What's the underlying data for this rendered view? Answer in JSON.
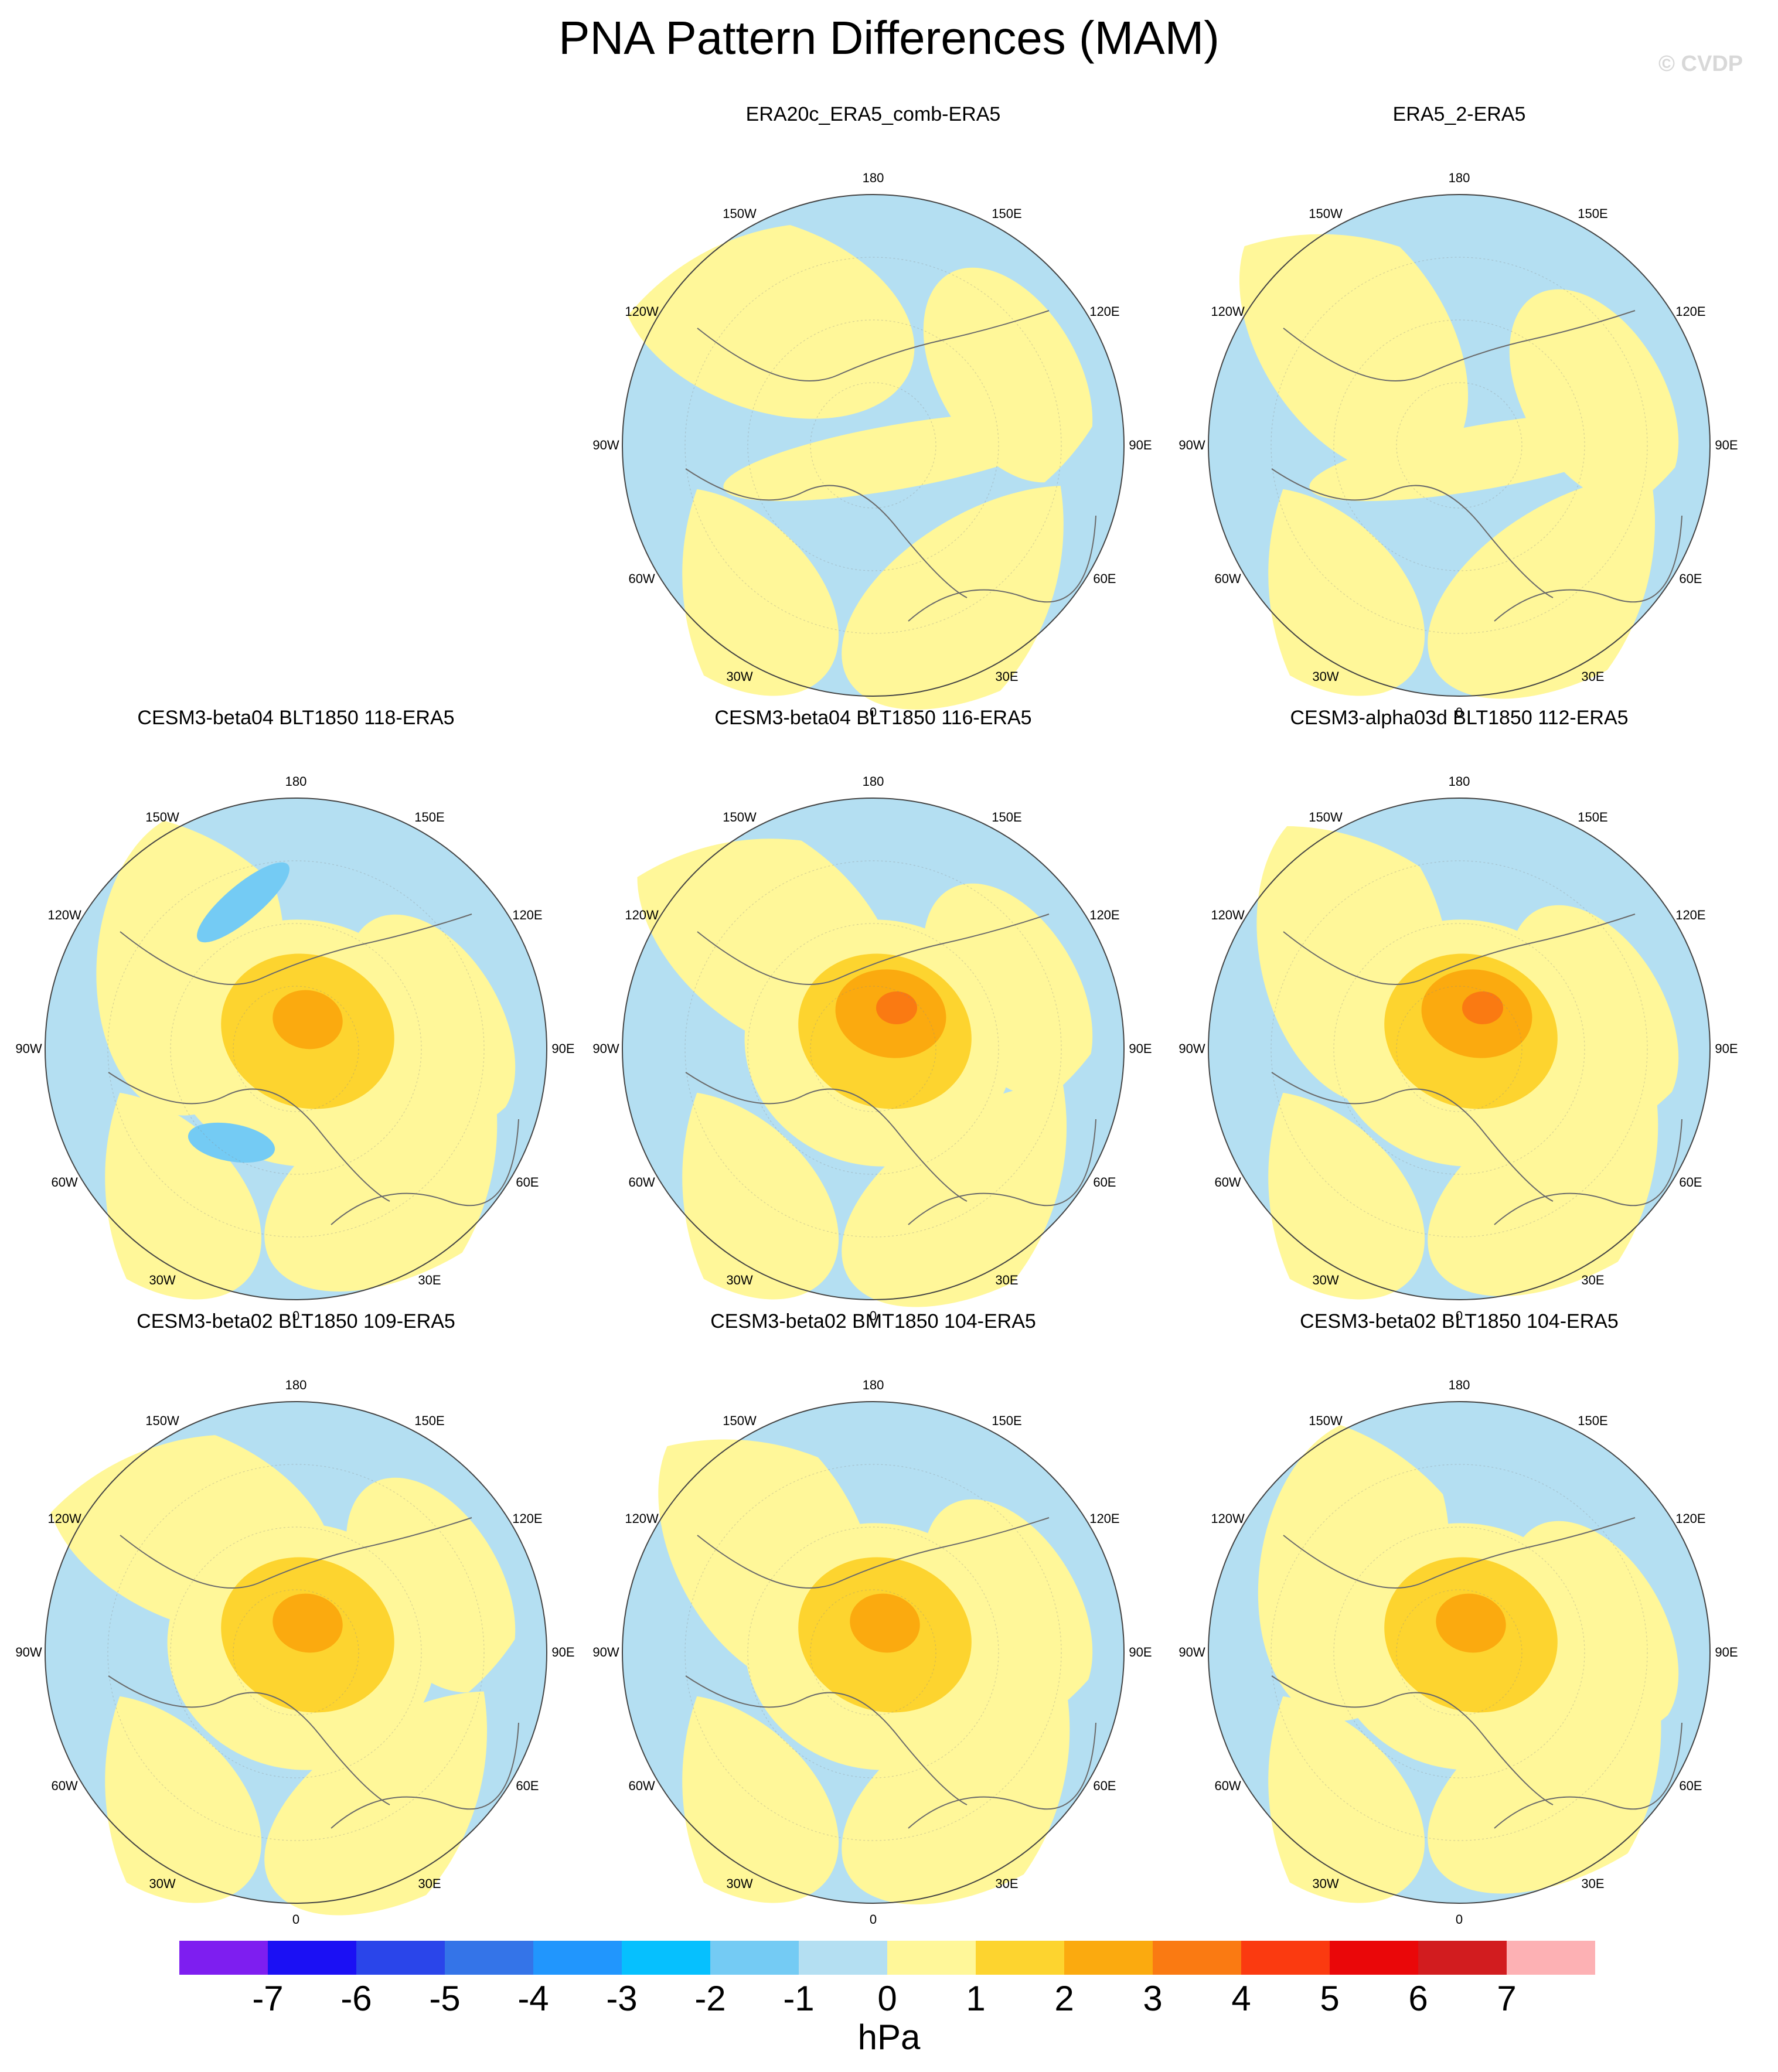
{
  "title": "PNA Pattern Differences (MAM)",
  "credit": "© CVDP",
  "lon_labels": {
    "top": "180",
    "bottom": "0",
    "upper_left": "150W",
    "upper_right": "150E",
    "left_upper": "120W",
    "right_upper": "120E",
    "left": "90W",
    "right": "90E",
    "left_lower": "60W",
    "right_lower": "60E",
    "lower_left": "30W",
    "lower_right": "30E"
  },
  "panels": [
    {
      "title": "ERA20c_ERA5_comb-ERA5",
      "pattern": "weak"
    },
    {
      "title": "ERA5_2-ERA5",
      "pattern": "weak"
    },
    {
      "title": "CESM3-beta04 BLT1850 118-ERA5",
      "pattern": "moderate"
    },
    {
      "title": "CESM3-beta04 BLT1850 116-ERA5",
      "pattern": "strong"
    },
    {
      "title": "CESM3-alpha03d BLT1850 112-ERA5",
      "pattern": "strong"
    },
    {
      "title": "CESM3-beta02 BLT1850 109-ERA5",
      "pattern": "moderate"
    },
    {
      "title": "CESM3-beta02 BMT1850 104-ERA5",
      "pattern": "moderate"
    },
    {
      "title": "CESM3-beta02 BLT1850 104-ERA5",
      "pattern": "moderate"
    }
  ],
  "colorbar": {
    "units": "hPa",
    "labels": [
      "-7",
      "-6",
      "-5",
      "-4",
      "-3",
      "-2",
      "-1",
      "0",
      "1",
      "2",
      "3",
      "4",
      "5",
      "6",
      "7"
    ],
    "colors": [
      "#7e1ef0",
      "#1b10f4",
      "#2a45ea",
      "#3474e8",
      "#2196fd",
      "#06c0fe",
      "#74cbf4",
      "#b4dff2",
      "#fff799",
      "#fdd42f",
      "#fbaa0f",
      "#fa7a12",
      "#fb3a10",
      "#ea0709",
      "#d21c1f",
      "#fdb1b4"
    ]
  }
}
